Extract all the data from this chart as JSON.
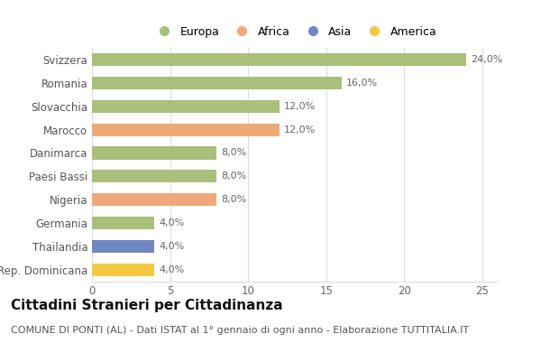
{
  "categories": [
    "Svizzera",
    "Romania",
    "Slovacchia",
    "Marocco",
    "Danimarca",
    "Paesi Bassi",
    "Nigeria",
    "Germania",
    "Thailandia",
    "Rep. Dominicana"
  ],
  "values": [
    24.0,
    16.0,
    12.0,
    12.0,
    8.0,
    8.0,
    8.0,
    4.0,
    4.0,
    4.0
  ],
  "labels": [
    "24,0%",
    "16,0%",
    "12,0%",
    "12,0%",
    "8,0%",
    "8,0%",
    "8,0%",
    "4,0%",
    "4,0%",
    "4,0%"
  ],
  "colors": [
    "#a8c07a",
    "#a8c07a",
    "#a8c07a",
    "#f0a878",
    "#a8c07a",
    "#a8c07a",
    "#f0a878",
    "#a8c07a",
    "#7088c0",
    "#f5c842"
  ],
  "legend_labels": [
    "Europa",
    "Africa",
    "Asia",
    "America"
  ],
  "legend_colors": [
    "#a8c07a",
    "#f0a878",
    "#7088c0",
    "#f5c842"
  ],
  "title": "Cittadini Stranieri per Cittadinanza",
  "subtitle": "COMUNE DI PONTI (AL) - Dati ISTAT al 1° gennaio di ogni anno - Elaborazione TUTTITALIA.IT",
  "xlim": [
    0,
    26
  ],
  "xticks": [
    0,
    5,
    10,
    15,
    20,
    25
  ],
  "background_color": "#ffffff",
  "bar_height": 0.55,
  "grid_color": "#dddddd",
  "label_fontsize": 8,
  "title_fontsize": 11,
  "subtitle_fontsize": 8
}
